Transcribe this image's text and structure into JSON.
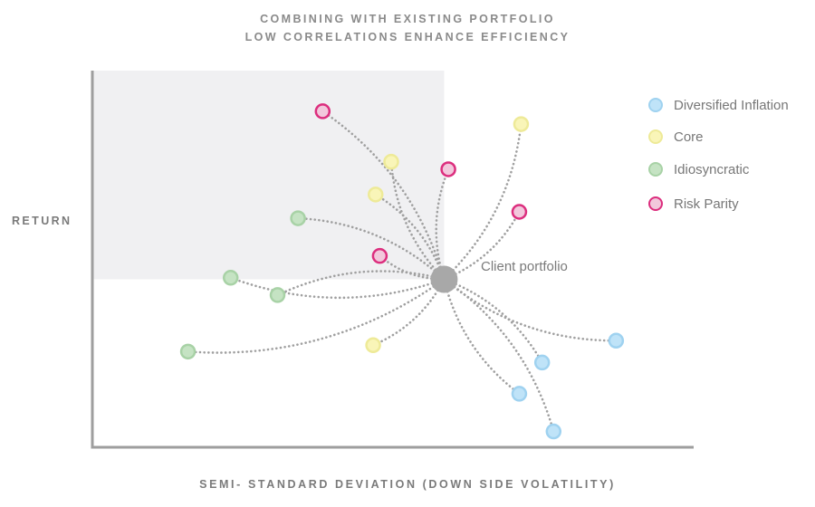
{
  "title_line1": "COMBINING WITH EXISTING PORTFOLIO",
  "title_line2": "LOW CORRELATIONS ENHANCE EFFICIENCY",
  "colors": {
    "Diversified Inflation": {
      "fill": "#bfe3f8",
      "stroke": "#9fd2f0"
    },
    "Core": {
      "fill": "#f9f5b8",
      "stroke": "#eeea98"
    },
    "Idiosyncratic": {
      "fill": "#c5e3c3",
      "stroke": "#a8d2a6"
    },
    "Risk Parity": {
      "fill": "#f2c8dc",
      "stroke": "#dc2e7e"
    },
    "client": "#a8a8a8",
    "connector": "#a0a0a0",
    "axis": "#9e9e9e",
    "shade": "#f0f0f2"
  },
  "chart_data": {
    "type": "scatter",
    "xlabel": "SEMI- STANDARD DEVIATION (DOWN SIDE VOLATILITY)",
    "ylabel": "RETURN",
    "xlim": [
      0,
      100
    ],
    "ylim": [
      0,
      100
    ],
    "legend_position": "top-right",
    "legend": [
      "Diversified Inflation",
      "Core",
      "Idiosyncratic",
      "Risk Parity"
    ],
    "client_portfolio": {
      "label": "Client portfolio",
      "x": 58.5,
      "y": 44.6
    },
    "series": [
      {
        "name": "Diversified Inflation",
        "points": [
          {
            "x": 87.1,
            "y": 28.3
          },
          {
            "x": 74.8,
            "y": 22.5
          },
          {
            "x": 71.0,
            "y": 14.2
          },
          {
            "x": 76.7,
            "y": 4.2
          }
        ]
      },
      {
        "name": "Core",
        "points": [
          {
            "x": 71.3,
            "y": 85.8
          },
          {
            "x": 49.7,
            "y": 75.8
          },
          {
            "x": 47.1,
            "y": 67.1
          },
          {
            "x": 46.7,
            "y": 27.1
          }
        ]
      },
      {
        "name": "Idiosyncratic",
        "points": [
          {
            "x": 34.2,
            "y": 60.8
          },
          {
            "x": 23.0,
            "y": 45.0
          },
          {
            "x": 30.8,
            "y": 40.4
          },
          {
            "x": 15.9,
            "y": 25.4
          }
        ]
      },
      {
        "name": "Risk Parity",
        "points": [
          {
            "x": 38.3,
            "y": 89.2
          },
          {
            "x": 59.2,
            "y": 73.8
          },
          {
            "x": 71.0,
            "y": 62.5
          },
          {
            "x": 47.8,
            "y": 50.8
          }
        ]
      }
    ],
    "shaded_region": {
      "x": [
        0,
        58.5
      ],
      "y": [
        44.6,
        100
      ]
    }
  }
}
